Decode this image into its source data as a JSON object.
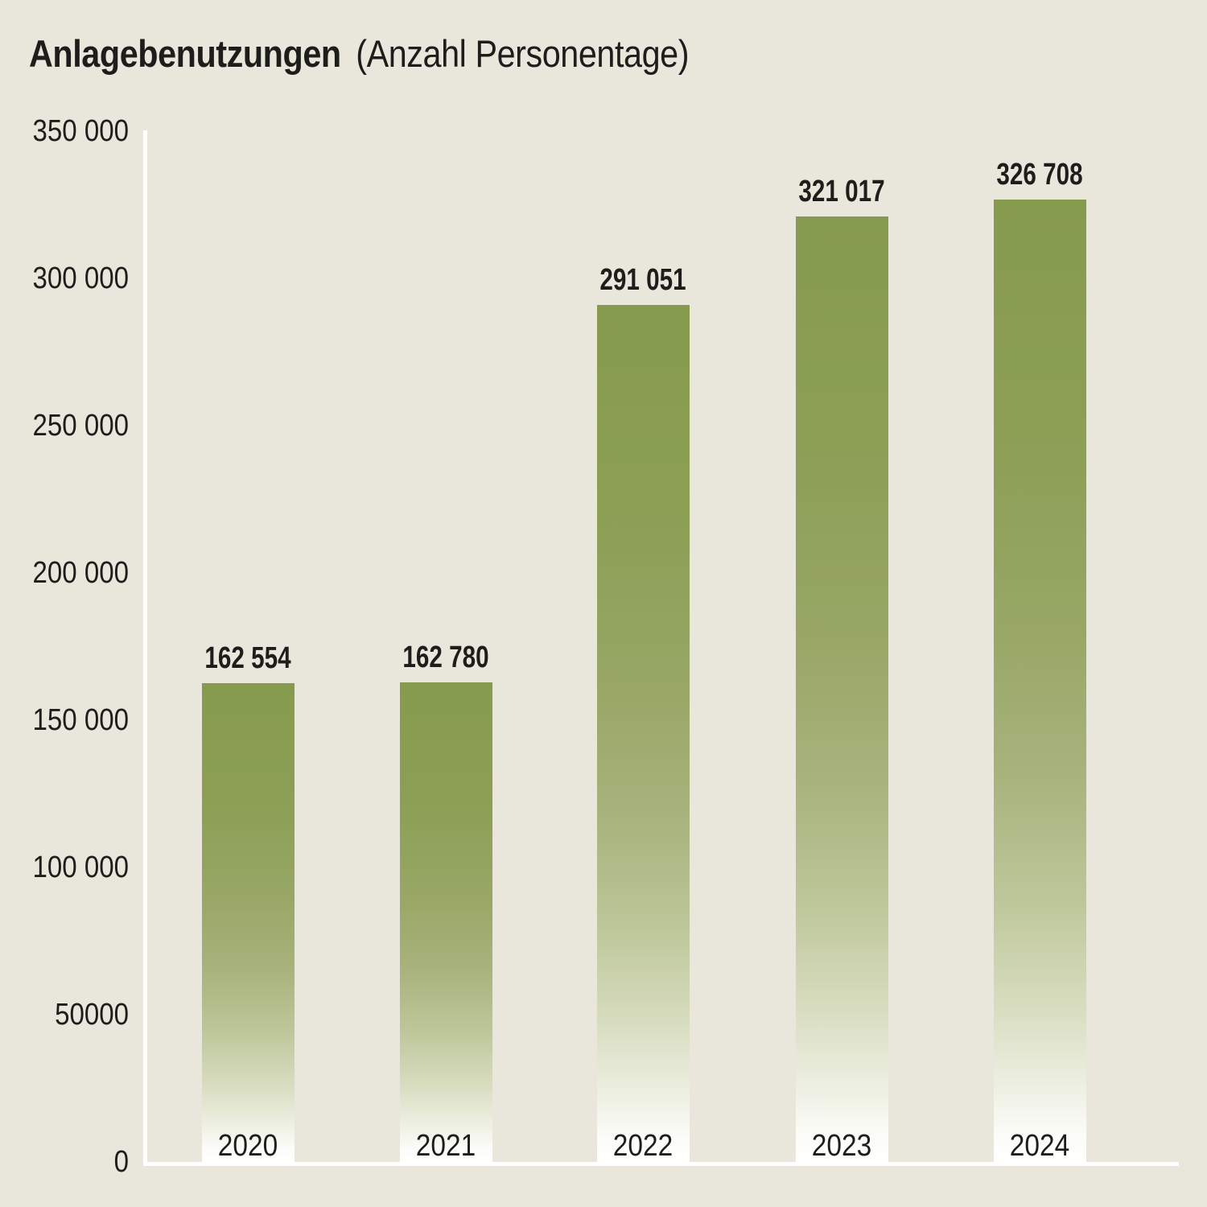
{
  "title": {
    "main": "Anlagebenutzungen",
    "sub": "(Anzahl Personentage)"
  },
  "chart_data": {
    "type": "bar",
    "title": "Anlagebenutzungen (Anzahl Personentage)",
    "categories": [
      "2020",
      "2021",
      "2022",
      "2023",
      "2024"
    ],
    "values": [
      162554,
      162780,
      291051,
      321017,
      326708
    ],
    "value_labels": [
      "162 554",
      "162 780",
      "291 051",
      "321 017",
      "326 708"
    ],
    "ylim": [
      0,
      350000
    ],
    "yticks": [
      {
        "value": 0,
        "label": "0"
      },
      {
        "value": 50000,
        "label": "50000"
      },
      {
        "value": 100000,
        "label": "100 000"
      },
      {
        "value": 150000,
        "label": "150 000"
      },
      {
        "value": 200000,
        "label": "200 000"
      },
      {
        "value": 250000,
        "label": "250 000"
      },
      {
        "value": 300000,
        "label": "300 000"
      },
      {
        "value": 350000,
        "label": "350 000"
      }
    ],
    "grid": false,
    "legend": "none",
    "colors": {
      "background": "#E9E7DB",
      "bar_top": "#879B4E",
      "bar_bottom": "#FFFFFF",
      "axis": "#FFFFFF",
      "text": "#1D1D1B"
    },
    "bar_gradient": [
      {
        "pos": 0,
        "color": "#879B4E"
      },
      {
        "pos": 25,
        "color": "#8C9F55"
      },
      {
        "pos": 45,
        "color": "#98A766"
      },
      {
        "pos": 60,
        "color": "#A8B37D"
      },
      {
        "pos": 73,
        "color": "#BEC79A"
      },
      {
        "pos": 84,
        "color": "#D8DDC0"
      },
      {
        "pos": 92,
        "color": "#EDEFE1"
      },
      {
        "pos": 97,
        "color": "#FBFBF8"
      },
      {
        "pos": 100,
        "color": "#FFFFFF"
      }
    ]
  }
}
